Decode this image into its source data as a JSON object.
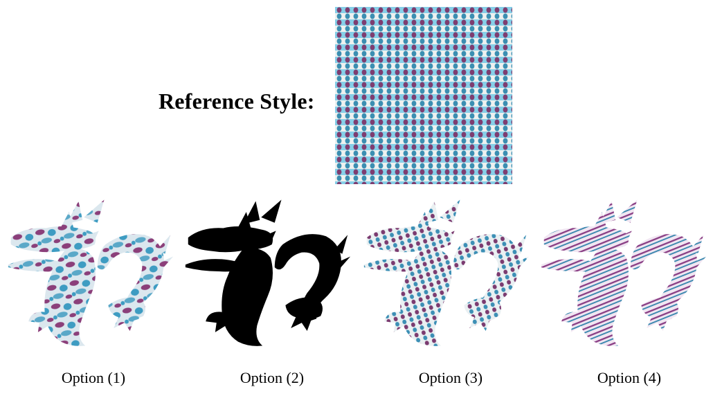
{
  "reference": {
    "label": "Reference Style:",
    "colors": {
      "bg": "#e9ecec",
      "stripe": "#7fd0ea",
      "dot_purple": "#7d3c6e",
      "dot_blue": "#3b8db0"
    }
  },
  "options": [
    {
      "label": "Option (1)",
      "style": "blotchy-texture",
      "colors": {
        "base": "#d9e6ee",
        "a": "#3e9cc2",
        "b": "#8b3f7a"
      }
    },
    {
      "label": "Option (2)",
      "style": "silhouette",
      "colors": {
        "base": "#000000"
      }
    },
    {
      "label": "Option (3)",
      "style": "dotted-stripes",
      "colors": {
        "base": "#eaf0f2",
        "a": "#3c8fb5",
        "b": "#7b3b70"
      }
    },
    {
      "label": "Option (4)",
      "style": "fine-stripes",
      "colors": {
        "base": "#f1e6f2",
        "a": "#8a3f85",
        "b": "#3d8ab0"
      }
    }
  ]
}
